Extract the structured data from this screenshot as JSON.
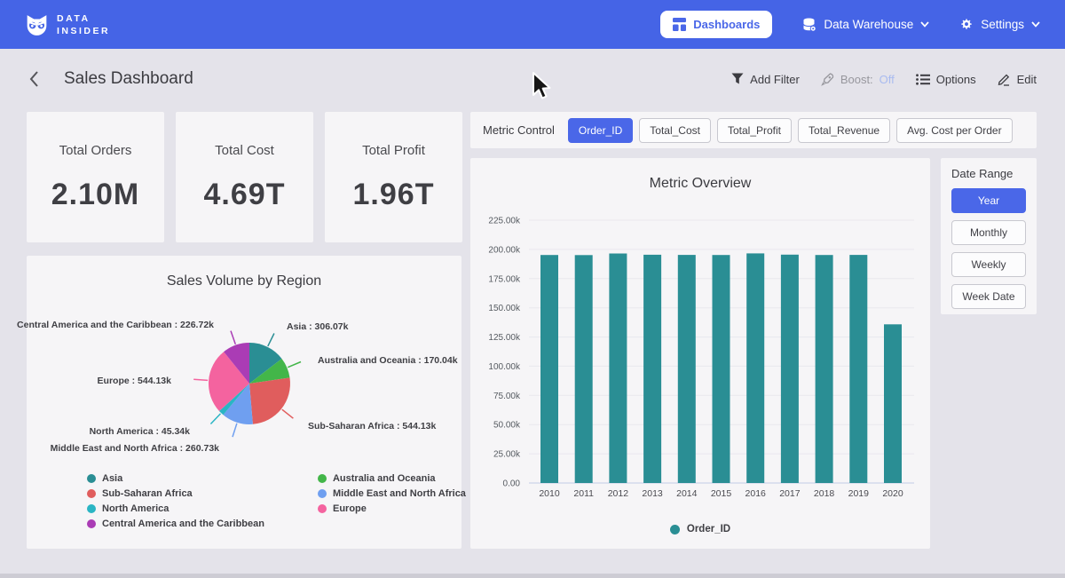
{
  "colors": {
    "navbar": "#4564e6",
    "accent": "#4a67e8",
    "page_bg": "#e4e3ea",
    "card_bg": "#f6f5f7",
    "teal": "#2a8e94",
    "boost_off": "#a9bbf0"
  },
  "navbar": {
    "brand_line1": "DATA",
    "brand_line2": "INSIDER",
    "dashboards_label": "Dashboards",
    "data_warehouse_label": "Data Warehouse",
    "settings_label": "Settings"
  },
  "header": {
    "title": "Sales Dashboard",
    "add_filter_label": "Add Filter",
    "boost_label": "Boost:",
    "boost_value": "Off",
    "options_label": "Options",
    "edit_label": "Edit"
  },
  "kpis": [
    {
      "label": "Total Orders",
      "value": "2.10M"
    },
    {
      "label": "Total Cost",
      "value": "4.69T"
    },
    {
      "label": "Total Profit",
      "value": "1.96T"
    }
  ],
  "metric_control": {
    "label": "Metric Control",
    "options": [
      {
        "label": "Order_ID",
        "selected": true
      },
      {
        "label": "Total_Cost",
        "selected": false
      },
      {
        "label": "Total_Profit",
        "selected": false
      },
      {
        "label": "Total_Revenue",
        "selected": false
      },
      {
        "label": "Avg. Cost per Order",
        "selected": false
      }
    ]
  },
  "date_range": {
    "label": "Date Range",
    "options": [
      {
        "label": "Year",
        "selected": true
      },
      {
        "label": "Monthly",
        "selected": false
      },
      {
        "label": "Weekly",
        "selected": false
      },
      {
        "label": "Week Date",
        "selected": false
      }
    ]
  },
  "chart_data": [
    {
      "type": "bar",
      "title": "Metric Overview",
      "categories": [
        "2010",
        "2011",
        "2012",
        "2013",
        "2014",
        "2015",
        "2016",
        "2017",
        "2018",
        "2019",
        "2020"
      ],
      "series": [
        {
          "name": "Order_ID",
          "color": "#2a8e94",
          "values_k": [
            195.2,
            195.1,
            196.5,
            195.4,
            195.3,
            195.2,
            196.6,
            195.5,
            195.2,
            195.3,
            135.8
          ]
        }
      ],
      "xlabel": "",
      "ylabel": "",
      "ylim_k": [
        0,
        237.5
      ],
      "grid": true,
      "legend_position": "bottom",
      "y_ticks": [
        {
          "value": 0,
          "label": "0.00"
        },
        {
          "value": 25,
          "label": "25.00k"
        },
        {
          "value": 50,
          "label": "50.00k"
        },
        {
          "value": 75,
          "label": "75.00k"
        },
        {
          "value": 100,
          "label": "100.00k"
        },
        {
          "value": 125,
          "label": "125.00k"
        },
        {
          "value": 150,
          "label": "150.00k"
        },
        {
          "value": 175,
          "label": "175.00k"
        },
        {
          "value": 200,
          "label": "200.00k"
        },
        {
          "value": 225,
          "label": "225.00k"
        }
      ]
    },
    {
      "type": "pie",
      "title": "Sales Volume by Region",
      "start_angle_deg_from_top_clockwise": 0,
      "slices": [
        {
          "name": "Asia",
          "value_k": 306.07,
          "color": "#2a8e94",
          "display": "Asia : 306.07k"
        },
        {
          "name": "Australia and Oceania",
          "value_k": 170.04,
          "color": "#43b649",
          "display": "Australia and Oceania : 170.04k"
        },
        {
          "name": "Sub-Saharan Africa",
          "value_k": 544.13,
          "color": "#e05d5d",
          "display": "Sub-Saharan Africa : 544.13k"
        },
        {
          "name": "Middle East and North Africa",
          "value_k": 260.73,
          "color": "#6f9ff0",
          "display": "Middle East and North Africa : 260.73k"
        },
        {
          "name": "North America",
          "value_k": 45.34,
          "color": "#2ab5c4",
          "display": "North America : 45.34k"
        },
        {
          "name": "Europe",
          "value_k": 544.13,
          "color": "#f4639f",
          "display": "Europe : 544.13k"
        },
        {
          "name": "Central America and the Caribbean",
          "value_k": 226.72,
          "color": "#aa3cb5",
          "display": "Central America and the Caribbean : 226.72k"
        }
      ],
      "legend_columns": [
        [
          0,
          2,
          4,
          6
        ],
        [
          1,
          3,
          5
        ]
      ],
      "legend_position": "bottom"
    }
  ]
}
